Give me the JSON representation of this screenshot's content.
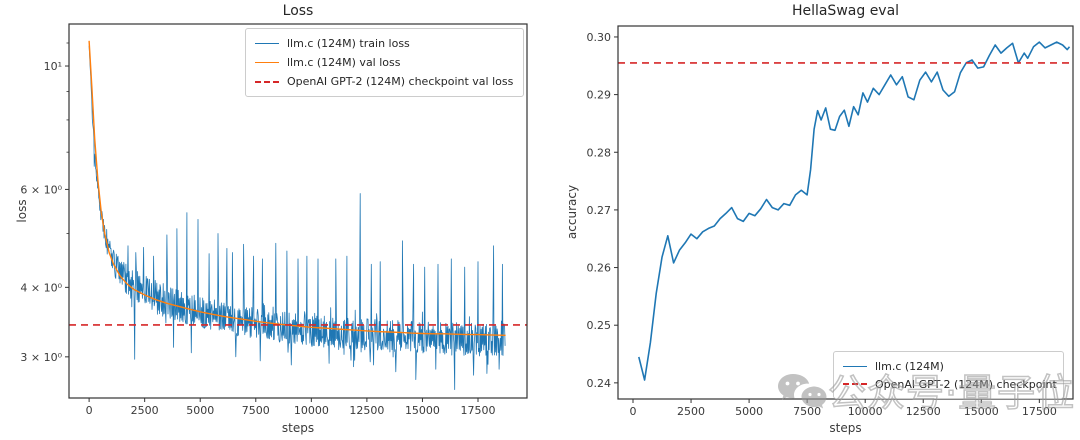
{
  "figure": {
    "background": "#ffffff",
    "frame_color": "#333333",
    "tick_text_color": "#3a3a3a",
    "watermark": {
      "icon": "wechat-icon",
      "text": "公众号·量子位"
    }
  },
  "chart_data": [
    {
      "type": "line",
      "title": "Loss",
      "xlabel": "steps",
      "ylabel": "loss",
      "xscale": "linear",
      "yscale": "log",
      "xlim": [
        -905,
        19705
      ],
      "ylim": [
        2.53,
        11.9
      ],
      "grid": false,
      "legend_position": "upper right",
      "xticks": [
        0,
        2500,
        5000,
        7500,
        10000,
        12500,
        15000,
        17500
      ],
      "yticks": [
        {
          "v": 10,
          "label": "10¹"
        },
        {
          "v": 6,
          "label": "6 × 10⁰"
        },
        {
          "v": 4,
          "label": "4 × 10⁰"
        },
        {
          "v": 3,
          "label": "3 × 10⁰"
        }
      ],
      "yticks_minor": [
        11,
        9,
        8,
        7,
        5
      ],
      "series": [
        {
          "id": "train-loss",
          "name": "llm.c (124M) train loss",
          "color": "#1f77b4",
          "kind": "noisy-trend",
          "line_style": "solid",
          "stroke_width": 0.8,
          "sample_step": 24,
          "x_end": 18740,
          "seed": 20240528,
          "trend": [
            [
              0,
              10.9
            ],
            [
              150,
              8.0
            ],
            [
              300,
              6.5
            ],
            [
              500,
              5.5
            ],
            [
              800,
              4.75
            ],
            [
              1200,
              4.35
            ],
            [
              1600,
              4.15
            ],
            [
              2000,
              4.02
            ],
            [
              2500,
              3.92
            ],
            [
              3000,
              3.83
            ],
            [
              3500,
              3.76
            ],
            [
              4000,
              3.7
            ],
            [
              4500,
              3.65
            ],
            [
              5000,
              3.6
            ],
            [
              5500,
              3.56
            ],
            [
              6000,
              3.52
            ],
            [
              6500,
              3.49
            ],
            [
              7000,
              3.46
            ],
            [
              7500,
              3.43
            ],
            [
              8000,
              3.41
            ],
            [
              8500,
              3.39
            ],
            [
              9000,
              3.37
            ],
            [
              9500,
              3.35
            ],
            [
              10000,
              3.34
            ],
            [
              10500,
              3.32
            ],
            [
              11000,
              3.31
            ],
            [
              11500,
              3.3
            ],
            [
              12000,
              3.29
            ],
            [
              12500,
              3.28
            ],
            [
              13000,
              3.27
            ],
            [
              13500,
              3.26
            ],
            [
              14000,
              3.25
            ],
            [
              14500,
              3.245
            ],
            [
              15000,
              3.24
            ],
            [
              15500,
              3.23
            ],
            [
              16000,
              3.225
            ],
            [
              16500,
              3.22
            ],
            [
              17000,
              3.215
            ],
            [
              17500,
              3.21
            ],
            [
              18000,
              3.205
            ],
            [
              18740,
              3.2
            ]
          ],
          "noise_amp": [
            [
              0,
              0.004
            ],
            [
              250,
              0.018
            ],
            [
              600,
              0.032
            ],
            [
              1000,
              0.048
            ],
            [
              1600,
              0.062
            ],
            [
              2500,
              0.068
            ],
            [
              5000,
              0.064
            ],
            [
              9000,
              0.062
            ],
            [
              14000,
              0.065
            ],
            [
              18740,
              0.066
            ]
          ],
          "spikes_up": [
            [
              230,
              6.6
            ],
            [
              480,
              5.5
            ],
            [
              1300,
              4.55
            ],
            [
              1750,
              4.75
            ],
            [
              2100,
              4.62
            ],
            [
              2450,
              4.72
            ],
            [
              2900,
              4.55
            ],
            [
              3500,
              4.97
            ],
            [
              3950,
              5.1
            ],
            [
              4400,
              5.45
            ],
            [
              4900,
              5.3
            ],
            [
              5400,
              4.6
            ],
            [
              5800,
              5.0
            ],
            [
              6200,
              4.7
            ],
            [
              6450,
              4.62
            ],
            [
              6950,
              4.78
            ],
            [
              7400,
              4.55
            ],
            [
              7800,
              4.5
            ],
            [
              8400,
              4.8
            ],
            [
              8900,
              4.65
            ],
            [
              9400,
              4.5
            ],
            [
              9800,
              4.55
            ],
            [
              10300,
              4.5
            ],
            [
              11100,
              4.5
            ],
            [
              11600,
              4.55
            ],
            [
              12200,
              5.9
            ],
            [
              12700,
              4.4
            ],
            [
              13100,
              4.45
            ],
            [
              14100,
              4.85
            ],
            [
              14600,
              4.4
            ],
            [
              15100,
              4.35
            ],
            [
              15700,
              4.4
            ],
            [
              16300,
              4.5
            ],
            [
              16900,
              4.35
            ],
            [
              17500,
              4.45
            ],
            [
              18200,
              4.75
            ],
            [
              18600,
              4.4
            ]
          ],
          "spikes_down": [
            [
              2050,
              2.97
            ],
            [
              3800,
              3.12
            ],
            [
              4600,
              3.05
            ],
            [
              6600,
              3.0
            ],
            [
              7700,
              2.95
            ],
            [
              9100,
              2.9
            ],
            [
              10800,
              2.92
            ],
            [
              11900,
              2.88
            ],
            [
              12800,
              2.9
            ],
            [
              13800,
              2.82
            ],
            [
              14700,
              2.73
            ],
            [
              15600,
              2.85
            ],
            [
              16450,
              2.62
            ],
            [
              17300,
              2.78
            ],
            [
              17900,
              2.8
            ],
            [
              18450,
              2.85
            ]
          ]
        },
        {
          "id": "val-loss",
          "name": "llm.c (124M) val loss",
          "color": "#ff7f0e",
          "kind": "points",
          "line_style": "solid",
          "stroke_width": 1.4,
          "points": [
            [
              0,
              11.1
            ],
            [
              120,
              9.2
            ],
            [
              250,
              7.4
            ],
            [
              400,
              6.2
            ],
            [
              550,
              5.45
            ],
            [
              700,
              5.0
            ],
            [
              900,
              4.62
            ],
            [
              1100,
              4.4
            ],
            [
              1400,
              4.19
            ],
            [
              1700,
              4.06
            ],
            [
              2000,
              3.97
            ],
            [
              2500,
              3.875
            ],
            [
              3000,
              3.8
            ],
            [
              3500,
              3.745
            ],
            [
              4000,
              3.7
            ],
            [
              4500,
              3.655
            ],
            [
              5000,
              3.615
            ],
            [
              5500,
              3.58
            ],
            [
              6000,
              3.55
            ],
            [
              6500,
              3.525
            ],
            [
              7000,
              3.5
            ],
            [
              7500,
              3.475
            ],
            [
              8000,
              3.455
            ],
            [
              8500,
              3.435
            ],
            [
              9000,
              3.42
            ],
            [
              9500,
              3.405
            ],
            [
              10000,
              3.39
            ],
            [
              10500,
              3.38
            ],
            [
              11000,
              3.37
            ],
            [
              11500,
              3.36
            ],
            [
              12000,
              3.35
            ],
            [
              12500,
              3.34
            ],
            [
              13000,
              3.33
            ],
            [
              13500,
              3.325
            ],
            [
              14000,
              3.32
            ],
            [
              14500,
              3.31
            ],
            [
              15000,
              3.305
            ],
            [
              15500,
              3.3
            ],
            [
              16000,
              3.3
            ],
            [
              16500,
              3.295
            ],
            [
              17000,
              3.29
            ],
            [
              17500,
              3.29
            ],
            [
              18000,
              3.285
            ],
            [
              18740,
              3.28
            ]
          ]
        },
        {
          "id": "gpt2-checkpoint-val-loss",
          "name": "OpenAI GPT-2 (124M) checkpoint val loss",
          "color": "#d62728",
          "kind": "hline",
          "line_style": "dashed",
          "stroke_width": 1.6,
          "y": 3.424
        }
      ]
    },
    {
      "type": "line",
      "title": "HellaSwag eval",
      "xlabel": "steps",
      "ylabel": "accuracy",
      "xscale": "linear",
      "yscale": "linear",
      "xlim": [
        -646,
        18950
      ],
      "ylim": [
        0.2372,
        0.3019
      ],
      "grid": false,
      "legend_position": "lower right",
      "xticks": [
        0,
        2500,
        5000,
        7500,
        10000,
        12500,
        15000,
        17500
      ],
      "yticks": [
        {
          "v": 0.3,
          "label": "0.30"
        },
        {
          "v": 0.29,
          "label": "0.29"
        },
        {
          "v": 0.28,
          "label": "0.28"
        },
        {
          "v": 0.27,
          "label": "0.27"
        },
        {
          "v": 0.26,
          "label": "0.26"
        },
        {
          "v": 0.25,
          "label": "0.25"
        },
        {
          "v": 0.24,
          "label": "0.24"
        }
      ],
      "yticks_minor": [],
      "series": [
        {
          "id": "hellaswag-llmc",
          "name": "llm.c (124M)",
          "color": "#1f77b4",
          "kind": "points",
          "line_style": "solid",
          "stroke_width": 1.6,
          "points": [
            [
              250,
              0.2445
            ],
            [
              500,
              0.2405
            ],
            [
              750,
              0.247
            ],
            [
              1000,
              0.2555
            ],
            [
              1250,
              0.2618
            ],
            [
              1500,
              0.2655
            ],
            [
              1750,
              0.2608
            ],
            [
              2000,
              0.263
            ],
            [
              2250,
              0.2643
            ],
            [
              2500,
              0.2658
            ],
            [
              2750,
              0.265
            ],
            [
              3000,
              0.2662
            ],
            [
              3250,
              0.2668
            ],
            [
              3500,
              0.2672
            ],
            [
              3750,
              0.2685
            ],
            [
              4000,
              0.2694
            ],
            [
              4250,
              0.2704
            ],
            [
              4500,
              0.2685
            ],
            [
              4750,
              0.268
            ],
            [
              5000,
              0.2694
            ],
            [
              5250,
              0.269
            ],
            [
              5500,
              0.2702
            ],
            [
              5750,
              0.2718
            ],
            [
              6000,
              0.2704
            ],
            [
              6250,
              0.27
            ],
            [
              6500,
              0.2711
            ],
            [
              6750,
              0.2708
            ],
            [
              7000,
              0.2726
            ],
            [
              7250,
              0.2734
            ],
            [
              7500,
              0.2726
            ],
            [
              7650,
              0.277
            ],
            [
              7800,
              0.284
            ],
            [
              7950,
              0.2872
            ],
            [
              8100,
              0.2856
            ],
            [
              8300,
              0.2877
            ],
            [
              8500,
              0.284
            ],
            [
              8700,
              0.2838
            ],
            [
              8900,
              0.2862
            ],
            [
              9100,
              0.2873
            ],
            [
              9300,
              0.2845
            ],
            [
              9500,
              0.2879
            ],
            [
              9700,
              0.2865
            ],
            [
              9900,
              0.2903
            ],
            [
              10100,
              0.2887
            ],
            [
              10350,
              0.2911
            ],
            [
              10600,
              0.29
            ],
            [
              10850,
              0.2917
            ],
            [
              11100,
              0.2934
            ],
            [
              11350,
              0.2917
            ],
            [
              11600,
              0.2931
            ],
            [
              11850,
              0.2896
            ],
            [
              12100,
              0.2891
            ],
            [
              12350,
              0.2925
            ],
            [
              12600,
              0.2939
            ],
            [
              12850,
              0.2922
            ],
            [
              13100,
              0.2939
            ],
            [
              13350,
              0.2908
            ],
            [
              13600,
              0.2897
            ],
            [
              13850,
              0.2905
            ],
            [
              14100,
              0.2938
            ],
            [
              14350,
              0.2955
            ],
            [
              14600,
              0.296
            ],
            [
              14850,
              0.2946
            ],
            [
              15100,
              0.2948
            ],
            [
              15350,
              0.2968
            ],
            [
              15600,
              0.2986
            ],
            [
              15850,
              0.2972
            ],
            [
              16100,
              0.2981
            ],
            [
              16350,
              0.2989
            ],
            [
              16600,
              0.2955
            ],
            [
              16850,
              0.2972
            ],
            [
              17000,
              0.2963
            ],
            [
              17250,
              0.2983
            ],
            [
              17500,
              0.2991
            ],
            [
              17750,
              0.2981
            ],
            [
              18000,
              0.2986
            ],
            [
              18250,
              0.2991
            ],
            [
              18500,
              0.2986
            ],
            [
              18700,
              0.2978
            ],
            [
              18800,
              0.2983
            ]
          ]
        },
        {
          "id": "hellaswag-gpt2-checkpoint",
          "name": "OpenAI GPT-2 (124M) checkpoint",
          "color": "#d62728",
          "kind": "hline",
          "line_style": "dashed",
          "stroke_width": 1.6,
          "y": 0.2955
        }
      ]
    }
  ]
}
